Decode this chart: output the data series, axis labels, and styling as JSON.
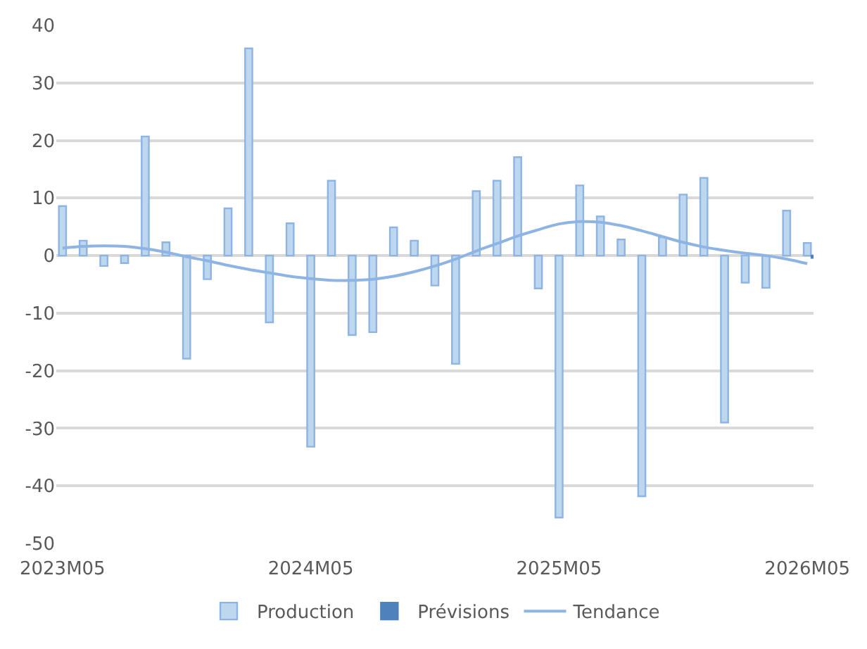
{
  "chart_data": {
    "type": "bar",
    "categories": [
      "2023M05",
      null,
      null,
      null,
      null,
      null,
      null,
      null,
      null,
      null,
      null,
      null,
      "2024M05",
      null,
      null,
      null,
      null,
      null,
      null,
      null,
      null,
      null,
      null,
      null,
      "2025M05",
      null,
      null,
      null,
      null,
      null,
      null,
      null,
      null,
      null,
      null,
      null,
      "2026M05"
    ],
    "series": [
      {
        "name": "Production",
        "color": "#bdd7ee",
        "values": [
          8.6,
          2.6,
          -1.8,
          -1.3,
          20.7,
          2.3,
          -17.9,
          -4.1,
          8.2,
          36.0,
          -11.6,
          5.6,
          -33.2,
          13.0,
          -13.8,
          -13.3,
          4.9,
          2.6,
          -5.2,
          -18.8,
          11.2,
          13.0,
          17.1,
          -5.7,
          -45.5,
          12.2,
          6.8,
          2.8,
          -41.8,
          3.2,
          10.6,
          13.5,
          -29.0,
          -4.7,
          -5.6,
          7.8,
          2.2
        ]
      },
      {
        "name": "Prévisions",
        "color": "#4f81bd",
        "values": [
          null,
          null,
          null,
          null,
          null,
          null,
          null,
          null,
          null,
          null,
          null,
          null,
          null,
          null,
          null,
          null,
          null,
          null,
          null,
          null,
          null,
          null,
          null,
          null,
          null,
          null,
          null,
          null,
          null,
          null,
          null,
          null,
          null,
          null,
          null,
          null,
          -0.4
        ]
      },
      {
        "name": "Tendance",
        "type": "line",
        "color": "#8eb4e3",
        "values": [
          1.3,
          1.6,
          1.7,
          1.6,
          1.2,
          0.6,
          -0.2,
          -0.9,
          -1.7,
          -2.4,
          -3.0,
          -3.6,
          -4.0,
          -4.3,
          -4.3,
          -4.1,
          -3.6,
          -2.8,
          -1.8,
          -0.6,
          0.8,
          2.1,
          3.4,
          4.5,
          5.5,
          5.9,
          5.8,
          5.2,
          4.3,
          3.3,
          2.3,
          1.5,
          0.9,
          0.4,
          0.0,
          -0.6,
          -1.4
        ]
      }
    ],
    "ylim": [
      -50,
      40
    ],
    "yticks": [
      -50,
      -40,
      -30,
      -20,
      -10,
      0,
      10,
      20,
      30,
      40
    ],
    "grid": "y",
    "legend": "bottom"
  }
}
